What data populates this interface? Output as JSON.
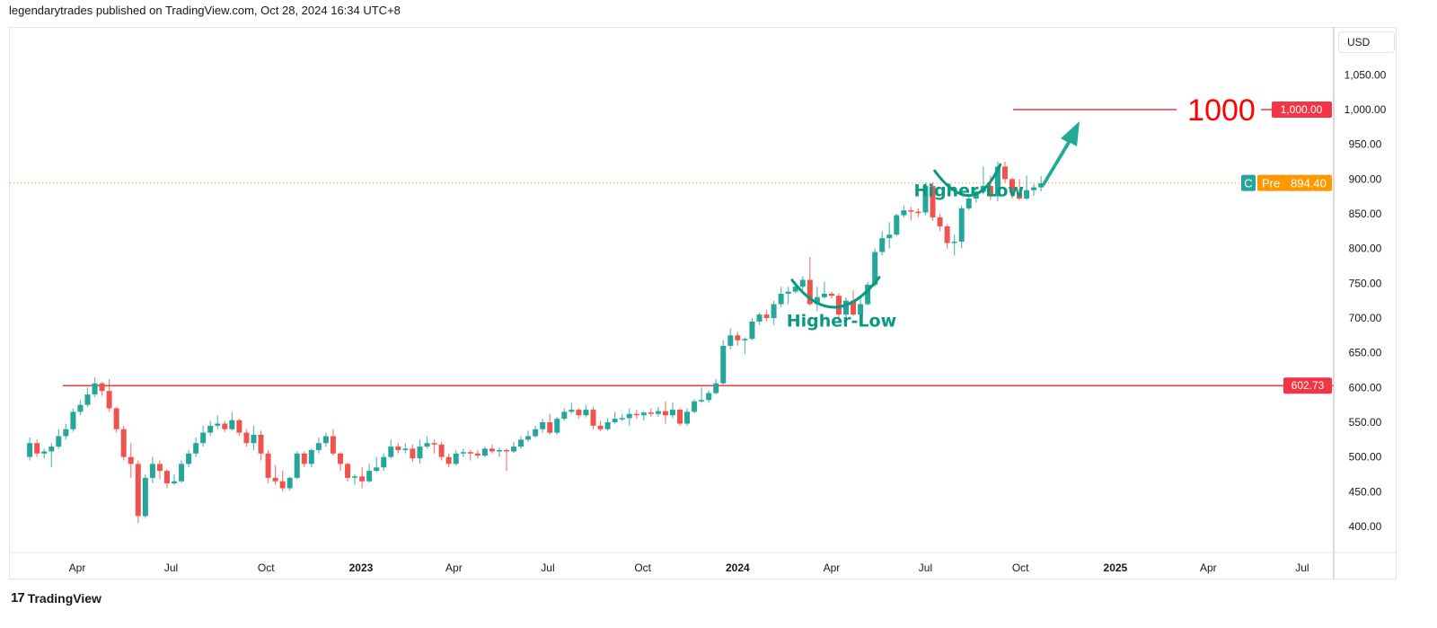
{
  "header": {
    "text": "legendarytrades published on TradingView.com, Oct 28, 2024 16:34 UTC+8"
  },
  "footer": {
    "brand": "TradingView",
    "logo": "17"
  },
  "currency_button": "USD",
  "colors": {
    "up": "#26a69a",
    "down": "#ef5350",
    "annotation": "#089981",
    "target": "#f23645",
    "pre": "#ff9800",
    "level": "#f23645"
  },
  "chart_data": {
    "type": "candlestick",
    "period": "1W",
    "first_candle_week": "2022-02-14",
    "ylim": [
      375,
      1080
    ],
    "y_ticks": [
      400,
      450,
      500,
      550,
      600,
      650,
      700,
      750,
      800,
      850,
      900,
      950,
      1000,
      1050
    ],
    "y_tick_labels": [
      "400.00",
      "450.00",
      "500.00",
      "550.00",
      "600.00",
      "650.00",
      "700.00",
      "750.00",
      "800.00",
      "850.00",
      "900.00",
      "950.00",
      "1,000.00",
      "1,050.00"
    ],
    "x_ticks": [
      {
        "date": "2022-04-01",
        "label": "Apr",
        "year": false
      },
      {
        "date": "2022-07-01",
        "label": "Jul",
        "year": false
      },
      {
        "date": "2022-10-01",
        "label": "Oct",
        "year": false
      },
      {
        "date": "2023-01-01",
        "label": "2023",
        "year": true
      },
      {
        "date": "2023-04-01",
        "label": "Apr",
        "year": false
      },
      {
        "date": "2023-07-01",
        "label": "Jul",
        "year": false
      },
      {
        "date": "2023-10-01",
        "label": "Oct",
        "year": false
      },
      {
        "date": "2024-01-01",
        "label": "2024",
        "year": true
      },
      {
        "date": "2024-04-01",
        "label": "Apr",
        "year": false
      },
      {
        "date": "2024-07-01",
        "label": "Jul",
        "year": false
      },
      {
        "date": "2024-10-01",
        "label": "Oct",
        "year": false
      },
      {
        "date": "2025-01-01",
        "label": "2025",
        "year": true
      },
      {
        "date": "2025-04-01",
        "label": "Apr",
        "year": false
      },
      {
        "date": "2025-07-01",
        "label": "Jul",
        "year": false
      }
    ],
    "candles": [
      [
        500,
        528,
        495,
        520
      ],
      [
        520,
        525,
        500,
        505
      ],
      [
        505,
        512,
        498,
        508
      ],
      [
        508,
        520,
        485,
        515
      ],
      [
        515,
        540,
        512,
        530
      ],
      [
        530,
        548,
        525,
        540
      ],
      [
        540,
        570,
        536,
        565
      ],
      [
        565,
        582,
        560,
        575
      ],
      [
        575,
        600,
        572,
        590
      ],
      [
        590,
        615,
        586,
        606
      ],
      [
        606,
        608,
        588,
        595
      ],
      [
        595,
        612,
        565,
        570
      ],
      [
        570,
        572,
        535,
        540
      ],
      [
        540,
        545,
        495,
        500
      ],
      [
        500,
        520,
        470,
        490
      ],
      [
        490,
        495,
        405,
        415
      ],
      [
        415,
        475,
        412,
        470
      ],
      [
        470,
        500,
        462,
        490
      ],
      [
        490,
        495,
        468,
        480
      ],
      [
        480,
        482,
        455,
        462
      ],
      [
        462,
        475,
        460,
        465
      ],
      [
        465,
        495,
        463,
        490
      ],
      [
        490,
        510,
        485,
        505
      ],
      [
        505,
        528,
        500,
        520
      ],
      [
        520,
        545,
        515,
        535
      ],
      [
        535,
        552,
        530,
        545
      ],
      [
        545,
        560,
        540,
        548
      ],
      [
        548,
        552,
        536,
        540
      ],
      [
        540,
        565,
        538,
        553
      ],
      [
        553,
        555,
        530,
        535
      ],
      [
        535,
        540,
        515,
        520
      ],
      [
        520,
        545,
        510,
        532
      ],
      [
        532,
        538,
        495,
        505
      ],
      [
        505,
        510,
        462,
        470
      ],
      [
        470,
        488,
        460,
        465
      ],
      [
        465,
        480,
        450,
        455
      ],
      [
        455,
        472,
        452,
        470
      ],
      [
        470,
        508,
        468,
        505
      ],
      [
        505,
        508,
        485,
        490
      ],
      [
        490,
        512,
        485,
        510
      ],
      [
        510,
        528,
        505,
        520
      ],
      [
        520,
        535,
        515,
        530
      ],
      [
        530,
        540,
        502,
        505
      ],
      [
        505,
        507,
        480,
        490
      ],
      [
        490,
        492,
        465,
        470
      ],
      [
        470,
        475,
        460,
        472
      ],
      [
        472,
        485,
        455,
        465
      ],
      [
        465,
        490,
        463,
        480
      ],
      [
        480,
        500,
        478,
        485
      ],
      [
        485,
        505,
        480,
        500
      ],
      [
        500,
        525,
        498,
        515
      ],
      [
        515,
        520,
        505,
        510
      ],
      [
        510,
        520,
        505,
        512
      ],
      [
        512,
        518,
        493,
        498
      ],
      [
        498,
        525,
        490,
        515
      ],
      [
        515,
        530,
        512,
        520
      ],
      [
        520,
        525,
        505,
        518
      ],
      [
        518,
        522,
        495,
        500
      ],
      [
        500,
        505,
        485,
        490
      ],
      [
        490,
        510,
        488,
        505
      ],
      [
        505,
        512,
        500,
        507
      ],
      [
        507,
        510,
        495,
        505
      ],
      [
        505,
        510,
        498,
        502
      ],
      [
        502,
        515,
        500,
        512
      ],
      [
        512,
        518,
        505,
        508
      ],
      [
        508,
        514,
        500,
        510
      ],
      [
        510,
        512,
        480,
        508
      ],
      [
        508,
        522,
        506,
        515
      ],
      [
        515,
        530,
        512,
        525
      ],
      [
        525,
        538,
        522,
        530
      ],
      [
        530,
        545,
        528,
        540
      ],
      [
        540,
        555,
        535,
        550
      ],
      [
        550,
        562,
        532,
        535
      ],
      [
        535,
        558,
        532,
        555
      ],
      [
        555,
        570,
        552,
        565
      ],
      [
        565,
        578,
        562,
        568
      ],
      [
        568,
        570,
        555,
        560
      ],
      [
        560,
        575,
        557,
        568
      ],
      [
        568,
        572,
        540,
        545
      ],
      [
        545,
        552,
        537,
        540
      ],
      [
        540,
        556,
        538,
        550
      ],
      [
        550,
        565,
        548,
        555
      ],
      [
        555,
        562,
        552,
        556
      ],
      [
        556,
        570,
        545,
        562
      ],
      [
        562,
        568,
        555,
        560
      ],
      [
        560,
        566,
        552,
        564
      ],
      [
        564,
        570,
        558,
        562
      ],
      [
        562,
        572,
        558,
        566
      ],
      [
        566,
        580,
        548,
        560
      ],
      [
        560,
        578,
        556,
        568
      ],
      [
        568,
        570,
        545,
        548
      ],
      [
        548,
        570,
        545,
        565
      ],
      [
        565,
        583,
        563,
        580
      ],
      [
        580,
        600,
        578,
        582
      ],
      [
        582,
        596,
        578,
        592
      ],
      [
        592,
        612,
        590,
        606
      ],
      [
        606,
        668,
        604,
        660
      ],
      [
        660,
        685,
        655,
        675
      ],
      [
        675,
        680,
        660,
        668
      ],
      [
        668,
        672,
        648,
        670
      ],
      [
        670,
        700,
        668,
        695
      ],
      [
        695,
        708,
        690,
        705
      ],
      [
        705,
        712,
        695,
        700
      ],
      [
        700,
        725,
        690,
        720
      ],
      [
        720,
        745,
        715,
        735
      ],
      [
        735,
        745,
        720,
        738
      ],
      [
        738,
        752,
        735,
        745
      ],
      [
        745,
        760,
        740,
        755
      ],
      [
        755,
        788,
        718,
        720
      ],
      [
        720,
        745,
        710,
        730
      ],
      [
        730,
        752,
        728,
        735
      ],
      [
        735,
        738,
        728,
        732
      ],
      [
        732,
        736,
        695,
        705
      ],
      [
        705,
        730,
        700,
        725
      ],
      [
        725,
        740,
        703,
        705
      ],
      [
        705,
        730,
        702,
        720
      ],
      [
        720,
        752,
        718,
        748
      ],
      [
        748,
        800,
        745,
        795
      ],
      [
        795,
        825,
        790,
        815
      ],
      [
        815,
        838,
        800,
        820
      ],
      [
        820,
        850,
        818,
        848
      ],
      [
        848,
        862,
        845,
        855
      ],
      [
        855,
        860,
        840,
        853
      ],
      [
        853,
        858,
        845,
        852
      ],
      [
        852,
        895,
        848,
        890
      ],
      [
        890,
        895,
        840,
        845
      ],
      [
        845,
        850,
        825,
        832
      ],
      [
        832,
        835,
        800,
        808
      ],
      [
        808,
        820,
        790,
        810
      ],
      [
        810,
        862,
        800,
        858
      ],
      [
        858,
        875,
        855,
        872
      ],
      [
        872,
        885,
        866,
        882
      ],
      [
        882,
        918,
        878,
        890
      ],
      [
        890,
        905,
        870,
        875
      ],
      [
        875,
        925,
        868,
        918
      ],
      [
        918,
        925,
        895,
        900
      ],
      [
        900,
        902,
        872,
        880
      ],
      [
        880,
        900,
        870,
        872
      ],
      [
        872,
        905,
        870,
        884
      ],
      [
        884,
        893,
        876,
        888
      ],
      [
        888,
        904,
        882,
        894
      ]
    ],
    "horizontal_levels": [
      {
        "price": 602.73,
        "label": "602.73"
      },
      {
        "price": 1000,
        "label": "1,000.00",
        "text": "1000"
      }
    ],
    "last_price": {
      "price": 894.4,
      "label": "894.40",
      "session": "Pre",
      "close_tag": "C"
    },
    "annotations": [
      {
        "text": "Higher-Low",
        "date": "2024-04-08",
        "price": 690
      },
      {
        "text": "Higher-Low",
        "date": "2024-08-12",
        "price": 785
      }
    ]
  }
}
